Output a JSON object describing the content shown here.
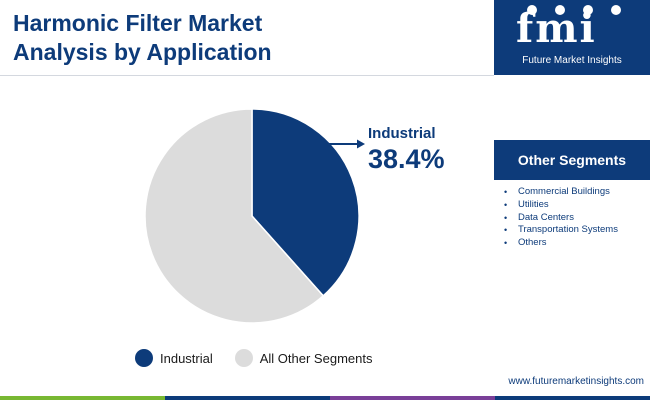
{
  "header": {
    "title_line1": "Harmonic Filter Market",
    "title_line2": "Analysis by Application"
  },
  "brand": {
    "logo_text": "fmi",
    "name": "Future Market Insights",
    "url": "www.futuremarketinsights.com"
  },
  "sidebar": {
    "title": "Other Segments",
    "items": [
      "Commercial Buildings",
      "Utilities",
      "Data Centers",
      "Transportation Systems",
      "Others"
    ],
    "bullet": "•"
  },
  "colors": {
    "navy": "#0d3b7a",
    "grey": "#dcdcdc",
    "green": "#78b832",
    "purple": "#7a3f98"
  },
  "chart_data": {
    "type": "pie",
    "slices": [
      {
        "label": "Industrial",
        "value": 38.4,
        "color": "#0d3b7a"
      },
      {
        "label": "All Other Segments",
        "value": 61.6,
        "color": "#dcdcdc"
      }
    ],
    "annotation": {
      "label": "Industrial",
      "value": "38.4%"
    },
    "legend": [
      "Industrial",
      "All Other Segments"
    ],
    "legend_placement": "bottom"
  }
}
